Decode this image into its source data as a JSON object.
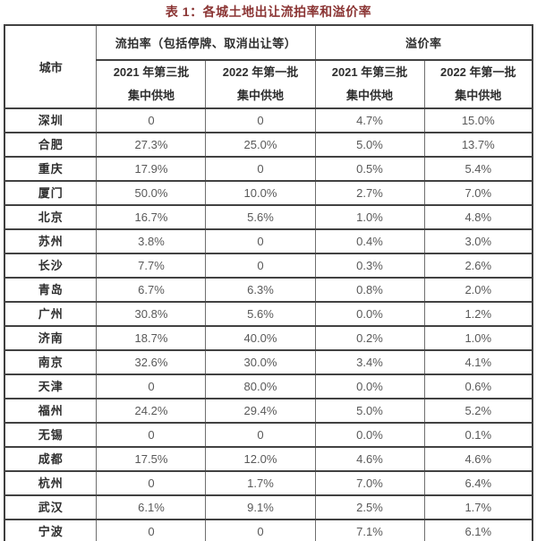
{
  "title": "表 1：各城土地出让流拍率和溢价率",
  "colors": {
    "title_text": "#8B3534",
    "header_text": "#2E2E2E",
    "value_text": "#595959",
    "border_thin": "#6F6F6F",
    "border_thick": "#3F3F3F"
  },
  "table": {
    "header": {
      "city": "城市",
      "group1": "流拍率（包括停牌、取消出让等）",
      "group2": "溢价率",
      "sub": [
        {
          "line1": "2021 年第三批",
          "line2": "集中供地"
        },
        {
          "line1": "2022 年第一批",
          "line2": "集中供地"
        },
        {
          "line1": "2021 年第三批",
          "line2": "集中供地"
        },
        {
          "line1": "2022 年第一批",
          "line2": "集中供地"
        }
      ]
    },
    "rows": [
      {
        "city": "深圳",
        "values": [
          "0",
          "0",
          "4.7%",
          "15.0%"
        ]
      },
      {
        "city": "合肥",
        "values": [
          "27.3%",
          "25.0%",
          "5.0%",
          "13.7%"
        ]
      },
      {
        "city": "重庆",
        "values": [
          "17.9%",
          "0",
          "0.5%",
          "5.4%"
        ]
      },
      {
        "city": "厦门",
        "values": [
          "50.0%",
          "10.0%",
          "2.7%",
          "7.0%"
        ]
      },
      {
        "city": "北京",
        "values": [
          "16.7%",
          "5.6%",
          "1.0%",
          "4.8%"
        ]
      },
      {
        "city": "苏州",
        "values": [
          "3.8%",
          "0",
          "0.4%",
          "3.0%"
        ]
      },
      {
        "city": "长沙",
        "values": [
          "7.7%",
          "0",
          "0.3%",
          "2.6%"
        ]
      },
      {
        "city": "青岛",
        "values": [
          "6.7%",
          "6.3%",
          "0.8%",
          "2.0%"
        ]
      },
      {
        "city": "广州",
        "values": [
          "30.8%",
          "5.6%",
          "0.0%",
          "1.2%"
        ]
      },
      {
        "city": "济南",
        "values": [
          "18.7%",
          "40.0%",
          "0.2%",
          "1.0%"
        ]
      },
      {
        "city": "南京",
        "values": [
          "32.6%",
          "30.0%",
          "3.4%",
          "4.1%"
        ]
      },
      {
        "city": "天津",
        "values": [
          "0",
          "80.0%",
          "0.0%",
          "0.6%"
        ]
      },
      {
        "city": "福州",
        "values": [
          "24.2%",
          "29.4%",
          "5.0%",
          "5.2%"
        ]
      },
      {
        "city": "无锡",
        "values": [
          "0",
          "0",
          "0.0%",
          "0.1%"
        ]
      },
      {
        "city": "成都",
        "values": [
          "17.5%",
          "12.0%",
          "4.6%",
          "4.6%"
        ]
      },
      {
        "city": "杭州",
        "values": [
          "0",
          "1.7%",
          "7.0%",
          "6.4%"
        ]
      },
      {
        "city": "武汉",
        "values": [
          "6.1%",
          "9.1%",
          "2.5%",
          "1.7%"
        ]
      },
      {
        "city": "宁波",
        "values": [
          "0",
          "0",
          "7.1%",
          "6.1%"
        ]
      }
    ]
  }
}
